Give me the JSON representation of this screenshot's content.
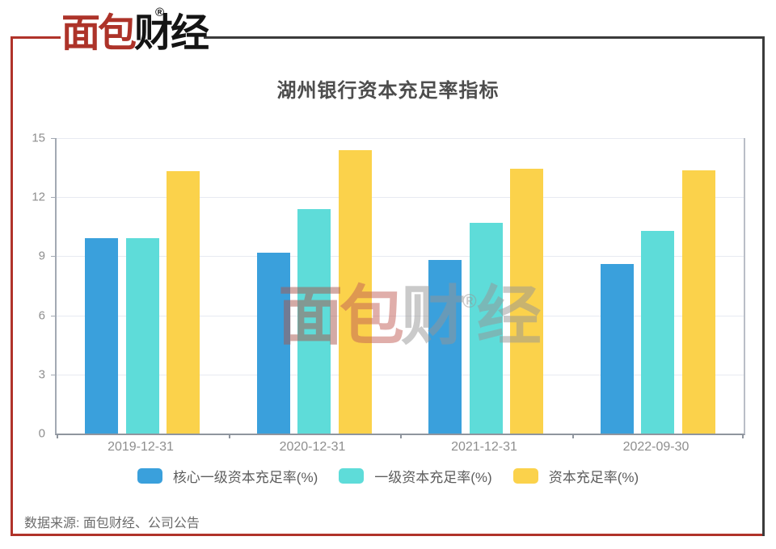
{
  "header": {
    "title": "湖州银行资本充足率指标"
  },
  "logo": {
    "brand_red": "面包",
    "brand_dark": "财经",
    "registered_mark": "®",
    "red_color": "#ad3329",
    "dark_color": "#141414"
  },
  "frame": {
    "red_color": "#b0332a",
    "dark_color": "#3b3b3b"
  },
  "watermark": {
    "chars": [
      {
        "t": "面",
        "c": "#a8574e"
      },
      {
        "t": "包",
        "c": "#c25f57"
      },
      {
        "t": "财",
        "c": "#969696"
      }
    ],
    "registered_mark": "®",
    "last_char": {
      "t": "经",
      "c": "#969696"
    },
    "reg_color": "#969696"
  },
  "chart_data": {
    "type": "bar",
    "title": "湖州银行资本充足率指标",
    "categories": [
      "2019-12-31",
      "2020-12-31",
      "2021-12-31",
      "2022-09-30"
    ],
    "series": [
      {
        "name": "核心一级资本充足率(%)",
        "color": "#3aa0dc",
        "values": [
          9.9,
          9.2,
          8.8,
          8.6
        ]
      },
      {
        "name": "一级资本充足率(%)",
        "color": "#5edcd9",
        "values": [
          9.9,
          11.4,
          10.7,
          10.3
        ]
      },
      {
        "name": "资本充足率(%)",
        "color": "#fbd24b",
        "values": [
          13.3,
          14.4,
          13.45,
          13.35
        ]
      }
    ],
    "xlabel": "",
    "ylabel": "",
    "ylim": [
      0,
      15
    ],
    "yticks": [
      0,
      3,
      6,
      9,
      12,
      15
    ],
    "grid": true,
    "legend_position": "bottom"
  },
  "footer": {
    "source": "数据来源: 面包财经、公司公告"
  }
}
